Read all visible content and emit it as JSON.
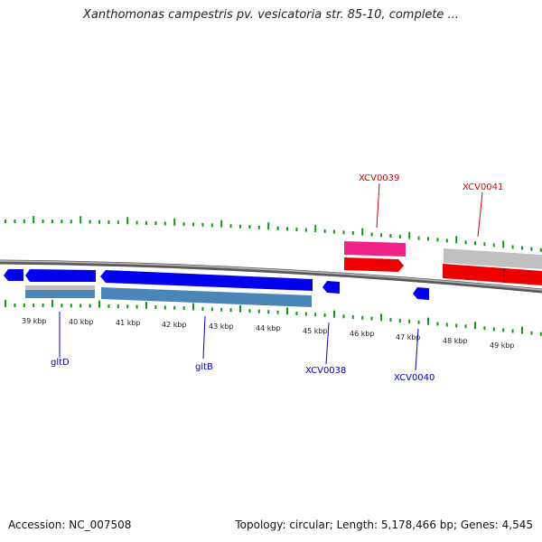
{
  "title": "Xanthomonas campestris pv. vesicatoria str. 85-10, complete ...",
  "accession": "Accession: NC_007508",
  "summary": "Topology: circular; Length: 5,178,466 bp; Genes: 4,545",
  "colors": {
    "backbone": "#808080",
    "minor_tick": "#119911",
    "gene_blue": "#0000ee",
    "gene_steel": "#4a86b8",
    "gene_gray": "#c0c0c0",
    "gene_red": "#ee0000",
    "gene_pink": "#ee2288",
    "label_blue": "#0000cc",
    "label_red": "#dd0000"
  },
  "map": {
    "axis_labels": [
      "39 kbp",
      "40 kbp",
      "41 kbp",
      "42 kbp",
      "43 kbp",
      "44 kbp",
      "45 kbp",
      "46 kbp",
      "47 kbp",
      "48 kbp",
      "49 kbp"
    ],
    "gene_labels": [
      "gltD",
      "gltB",
      "XCV0038",
      "XCV0040",
      "XCV0039",
      "XCV0041"
    ]
  }
}
